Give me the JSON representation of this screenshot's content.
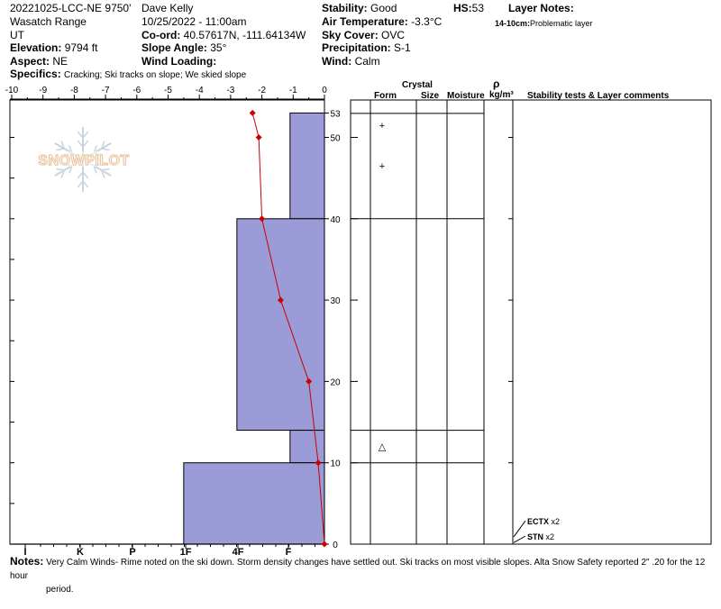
{
  "header": {
    "site_id": "20221025-LCC-NE 9750'",
    "range": "Wasatch Range",
    "state": "UT",
    "elevation_label": "Elevation:",
    "elevation_value": "9794 ft",
    "aspect_label": "Aspect:",
    "aspect_value": "NE",
    "specifics_label": "Specifics:",
    "specifics_value": "Cracking; Ski tracks on slope; We skied slope",
    "observer": "Dave Kelly",
    "datetime": "10/25/2022 - 11:00am",
    "coord_label": "Co-ord:",
    "coord_value": "40.57617N, -111.64134W",
    "slope_label": "Slope Angle:",
    "slope_value": "35°",
    "wind_loading_label": "Wind Loading:",
    "wind_loading_value": "",
    "stability_label": "Stability:",
    "stability_value": "Good",
    "air_temp_label": "Air Temperature:",
    "air_temp_value": "-3.3°C",
    "sky_label": "Sky Cover:",
    "sky_value": "OVC",
    "precip_label": "Precipitation:",
    "precip_value": "S-1",
    "wind_label": "Wind:",
    "wind_value": "Calm",
    "hs_label": "HS:",
    "hs_value": "53",
    "layer_notes_label": "Layer Notes:",
    "layer_note_range": "14-10cm:",
    "layer_note_text": "Problematic layer"
  },
  "logo_text": "SNOWPILOT",
  "columns": {
    "crystal": "Crystal",
    "form": "Form",
    "size": "Size",
    "moisture": "Moisture",
    "rho": "ρ",
    "density_unit": "kg/m³",
    "stability_tests": "Stability tests & Layer comments"
  },
  "notes": {
    "label": "Notes:",
    "text": "Very Calm Winds- Rime noted on the ski down. Storm density changes have settled out. Ski tracks on most visible slopes. Alta Snow Safety reported 2\" .20 for the 12 hour",
    "text2": "period."
  },
  "chart_data": {
    "type": "snow_profile",
    "snow_height_cm": 53,
    "depth_ticks": [
      0,
      10,
      20,
      30,
      40,
      50,
      53
    ],
    "temperature_axis": {
      "ticks": [
        -10,
        -9,
        -8,
        -7,
        -6,
        -5,
        -4,
        -3,
        -2,
        -1,
        0
      ],
      "range": [
        -10,
        0
      ]
    },
    "hardness_axis": {
      "labels": [
        "I",
        "K",
        "P",
        "1F",
        "4F",
        "F"
      ],
      "scale": [
        "F",
        "4F",
        "1F",
        "P",
        "K",
        "I"
      ]
    },
    "temperature_profile": [
      {
        "depth": 0,
        "temp": 0.0
      },
      {
        "depth": 10,
        "temp": -0.2
      },
      {
        "depth": 20,
        "temp": -0.5
      },
      {
        "depth": 30,
        "temp": -1.4
      },
      {
        "depth": 40,
        "temp": -2.0
      },
      {
        "depth": 50,
        "temp": -2.1
      },
      {
        "depth": 53,
        "temp": -2.3
      }
    ],
    "layers": [
      {
        "top": 53,
        "bottom": 40,
        "hardness_value": -1.1,
        "form": "+"
      },
      {
        "top": 40,
        "bottom": 14,
        "hardness_value": -2.8,
        "form": ""
      },
      {
        "top": 14,
        "bottom": 10,
        "hardness_value": -1.1,
        "form": "△"
      },
      {
        "top": 10,
        "bottom": 0,
        "hardness_value": -4.5,
        "form": ""
      }
    ],
    "crystal_forms": [
      {
        "depth": 51.5,
        "symbol": "+"
      },
      {
        "depth": 46.5,
        "symbol": "+"
      },
      {
        "depth": 12,
        "symbol": "△"
      }
    ],
    "stability_tests": [
      {
        "depth": 1,
        "name": "ECTX",
        "count": "x2"
      },
      {
        "depth": 0.3,
        "name": "STN",
        "count": "x2"
      }
    ],
    "colors": {
      "fill": "#9B9BD8",
      "temp_line": "#CC0000"
    }
  }
}
